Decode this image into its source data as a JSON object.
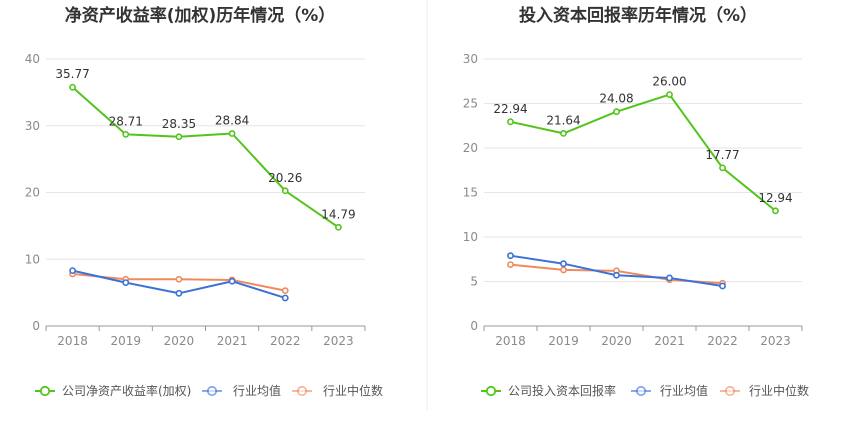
{
  "colors": {
    "company": "#52c41a",
    "avg": "#3a72d8",
    "median": "#f08a5d"
  },
  "chart_data": [
    {
      "type": "line",
      "title": "净资产收益率(加权)历年情况（%）",
      "categories": [
        "2018",
        "2019",
        "2020",
        "2021",
        "2022",
        "2023"
      ],
      "ylim": [
        0,
        40
      ],
      "yticks": [
        0,
        10,
        20,
        30,
        40
      ],
      "grid": true,
      "legend": "bottom",
      "series": [
        {
          "name": "公司净资产收益率(加权)",
          "color": "#52c41a",
          "labels": true,
          "values": [
            35.77,
            28.71,
            28.35,
            28.84,
            20.26,
            14.79
          ]
        },
        {
          "name": "行业均值",
          "color": "#3a72d8",
          "values": [
            8.3,
            6.5,
            4.9,
            6.7,
            4.2,
            null
          ]
        },
        {
          "name": "行业中位数",
          "color": "#f08a5d",
          "values": [
            7.8,
            7.0,
            7.0,
            6.9,
            5.3,
            null
          ]
        }
      ]
    },
    {
      "type": "line",
      "title": "投入资本回报率历年情况（%）",
      "categories": [
        "2018",
        "2019",
        "2020",
        "2021",
        "2022",
        "2023"
      ],
      "ylim": [
        0,
        30
      ],
      "yticks": [
        0,
        5,
        10,
        15,
        20,
        25,
        30
      ],
      "grid": true,
      "legend": "bottom",
      "series": [
        {
          "name": "公司投入资本回报率",
          "color": "#52c41a",
          "labels": true,
          "values": [
            22.94,
            21.64,
            24.08,
            26.0,
            17.77,
            12.94
          ]
        },
        {
          "name": "行业均值",
          "color": "#3a72d8",
          "values": [
            7.9,
            7.0,
            5.7,
            5.4,
            4.5,
            null
          ]
        },
        {
          "name": "行业中位数",
          "color": "#f08a5d",
          "values": [
            6.9,
            6.3,
            6.2,
            5.2,
            4.8,
            null
          ]
        }
      ]
    }
  ]
}
